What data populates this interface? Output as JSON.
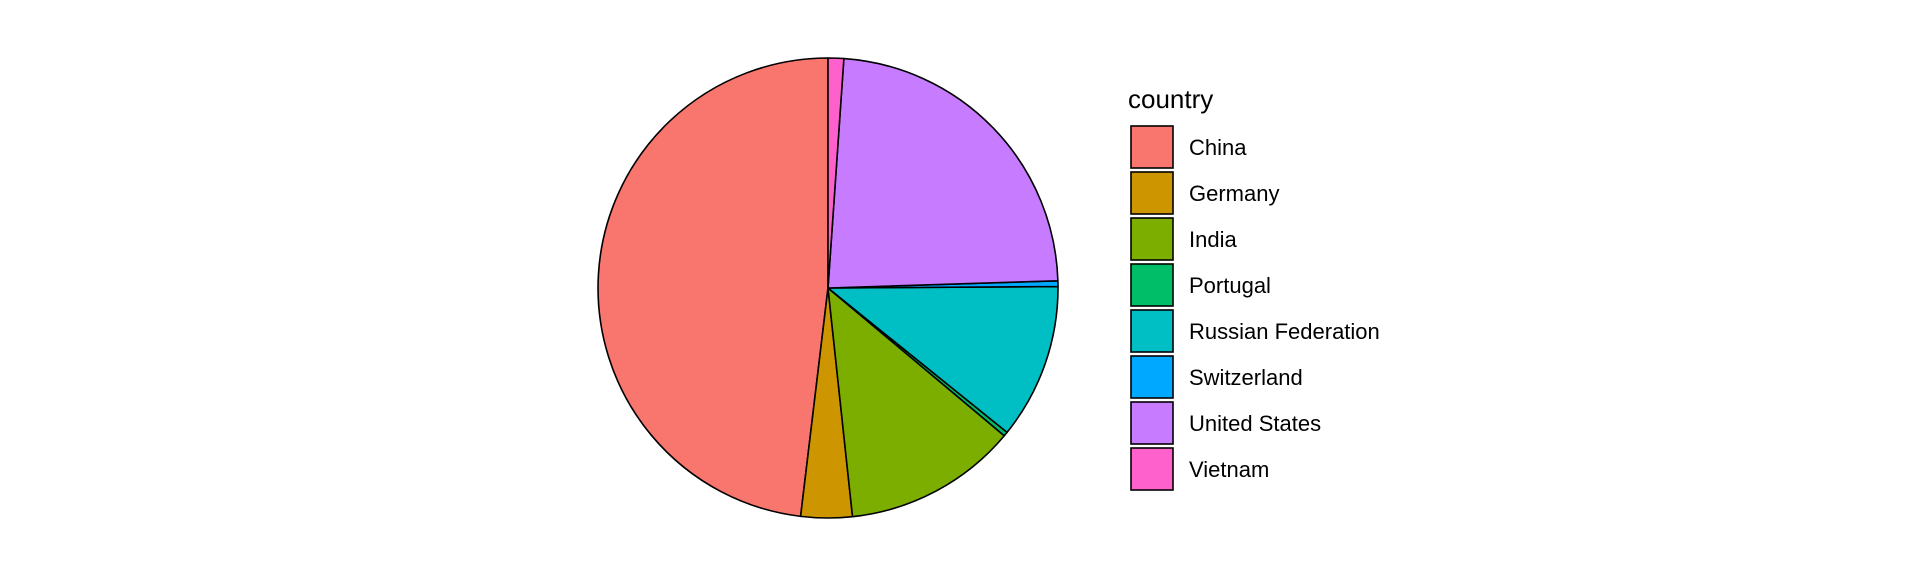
{
  "chart_data": {
    "type": "pie",
    "title": "",
    "legend_title": "country",
    "legend_position": "right",
    "categories": [
      "China",
      "Germany",
      "India",
      "Portugal",
      "Russian Federation",
      "Switzerland",
      "United States",
      "Vietnam"
    ],
    "values": [
      48.1,
      3.6,
      12.2,
      0.3,
      10.9,
      0.4,
      23.4,
      1.1
    ],
    "colors": [
      "#F8766D",
      "#CD9600",
      "#7CAE00",
      "#00BE67",
      "#00BFC4",
      "#00A9FF",
      "#C77CFF",
      "#FF61CC"
    ],
    "slice_border_color": "#000000"
  }
}
